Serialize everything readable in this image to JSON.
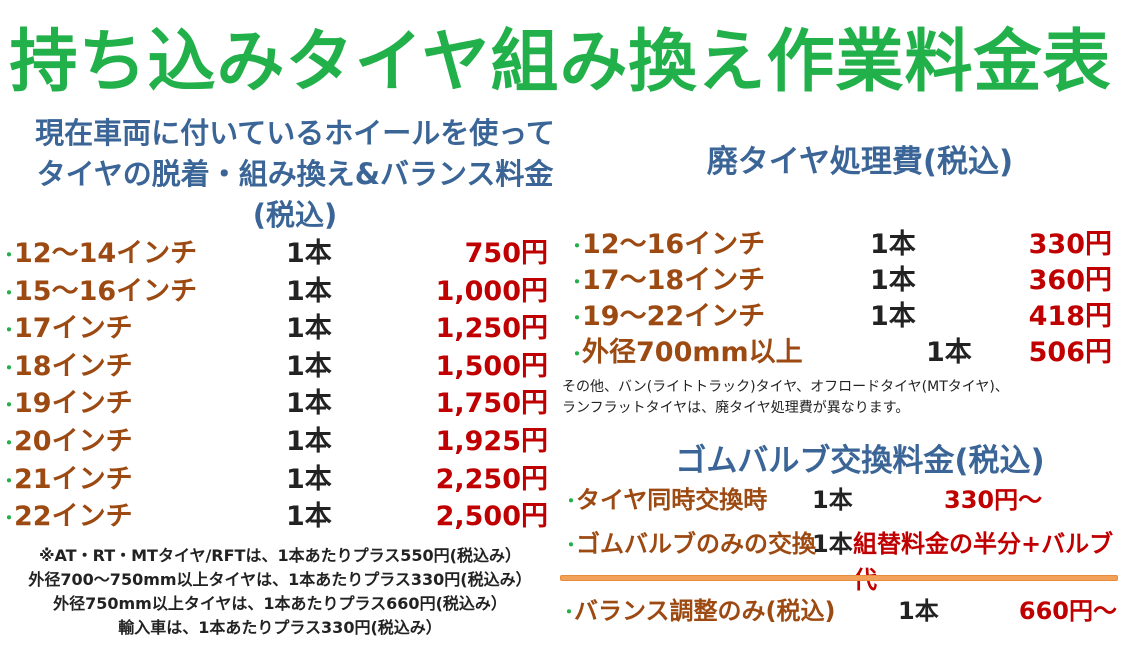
{
  "title": "持ち込みタイヤ組み換え作業料金表",
  "colors": {
    "title": "#22b04a",
    "heading": "#3a6596",
    "label": "#9c4a12",
    "price": "#c00000",
    "divider": "#f2a15a"
  },
  "left": {
    "subtitle_lines": [
      "現在車両に付いているホイールを使って",
      "タイヤの脱着・組み換え&バランス料金",
      "(税込)"
    ],
    "rows": [
      {
        "label": "12～14インチ",
        "qty": "1本",
        "price": "750円"
      },
      {
        "label": "15～16インチ",
        "qty": "1本",
        "price": "1,000円"
      },
      {
        "label": "17インチ",
        "qty": "1本",
        "price": "1,250円"
      },
      {
        "label": "18インチ",
        "qty": "1本",
        "price": "1,500円"
      },
      {
        "label": "19インチ",
        "qty": "1本",
        "price": "1,750円"
      },
      {
        "label": "20インチ",
        "qty": "1本",
        "price": "1,925円"
      },
      {
        "label": "21インチ",
        "qty": "1本",
        "price": "2,250円"
      },
      {
        "label": "22インチ",
        "qty": "1本",
        "price": "2,500円"
      }
    ],
    "notes": [
      "※AT・RT・MTタイヤ/RFTは、1本あたりプラス550円(税込み）",
      "外径700～750mm以上タイヤは、1本あたりプラス330円(税込み）",
      "外径750mm以上タイヤは、1本あたりプラス660円(税込み）",
      "輸入車は、1本あたりプラス330円(税込み）"
    ]
  },
  "disposal": {
    "heading": "廃タイヤ処理費(税込)",
    "rows": [
      {
        "label": "12～16インチ",
        "qty": "1本",
        "price": "330円"
      },
      {
        "label": "17～18インチ",
        "qty": "1本",
        "price": "360円"
      },
      {
        "label": "19～22インチ",
        "qty": "1本",
        "price": "418円"
      },
      {
        "label": "外径700mm以上",
        "qty": "1本",
        "price": "506円"
      }
    ],
    "note_lines": [
      "その他、バン(ライトトラック)タイヤ、オフロードタイヤ(MTタイヤ)、",
      "ランフラットタイヤは、廃タイヤ処理費が異なります。"
    ]
  },
  "valve": {
    "heading": "ゴムバルブ交換料金(税込)",
    "rows": [
      {
        "label": "タイヤ同時交換時",
        "qty": "1本",
        "price": "330円～"
      },
      {
        "label": "ゴムバルブのみの交換",
        "qty": "1本",
        "price": "組替料金の半分+バルブ代"
      }
    ]
  },
  "balance": {
    "label": "バランス調整のみ(税込)",
    "qty": "1本",
    "price": "660円～"
  },
  "bullet": "･"
}
